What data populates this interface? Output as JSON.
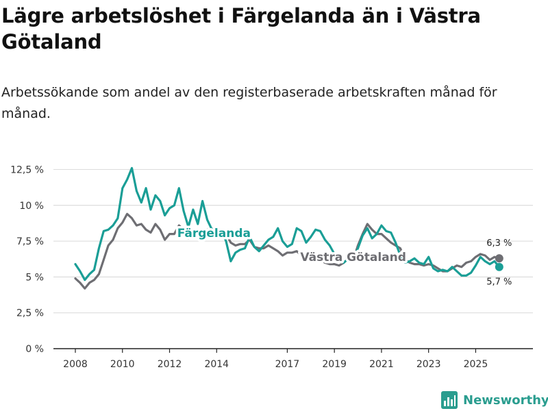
{
  "title": "Lägre arbetslöshet i Färgelanda än i Västra Götaland",
  "subtitle": "Arbetssökande som andel av den registerbaserade arbetskraften månad för månad.",
  "brand": {
    "name": "Newsworthy",
    "logo_icon": "bar-chart-logo-icon"
  },
  "colors": {
    "fargelanda": "#1a9e96",
    "vastra_gotaland": "#6e6e73",
    "grid": "#dddddd",
    "axis": "#222222"
  },
  "chart_data": {
    "type": "line",
    "title": "Lägre arbetslöshet i Färgelanda än i Västra Götaland",
    "xlabel": "",
    "ylabel": "",
    "ylim": [
      0,
      13
    ],
    "xlim": [
      2008,
      2026.5
    ],
    "yticks": [
      0,
      2.5,
      5,
      7.5,
      10,
      12.5
    ],
    "ytick_labels": [
      "0 %",
      "2,5 %",
      "5 %",
      "7,5 %",
      "10 %",
      "12,5 %"
    ],
    "xticks": [
      2008,
      2010,
      2012,
      2014,
      2017,
      2019,
      2021,
      2023,
      2025
    ],
    "xtick_labels": [
      "2008",
      "2010",
      "2012",
      "2014",
      "2017",
      "2019",
      "2021",
      "2023",
      "2025"
    ],
    "grid": true,
    "series": [
      {
        "name": "Västra Götaland",
        "label": "Västra Götaland",
        "end_label": "6,3 %",
        "color": "#6e6e73",
        "x": [
          2008.0,
          2008.2,
          2008.4,
          2008.6,
          2008.8,
          2009.0,
          2009.2,
          2009.4,
          2009.6,
          2009.8,
          2010.0,
          2010.2,
          2010.4,
          2010.6,
          2010.8,
          2011.0,
          2011.2,
          2011.4,
          2011.6,
          2011.8,
          2012.0,
          2012.2,
          2012.4,
          2012.6,
          2012.8,
          2013.0,
          2013.2,
          2013.4,
          2013.6,
          2013.8,
          2014.0,
          2014.2,
          2014.4,
          2014.6,
          2014.8,
          2015.0,
          2015.2,
          2015.4,
          2015.6,
          2015.8,
          2016.0,
          2016.2,
          2016.4,
          2016.6,
          2016.8,
          2017.0,
          2017.2,
          2017.4,
          2017.6,
          2017.8,
          2018.0,
          2018.2,
          2018.4,
          2018.6,
          2018.8,
          2019.0,
          2019.2,
          2019.4,
          2019.6,
          2019.8,
          2020.0,
          2020.2,
          2020.4,
          2020.6,
          2020.8,
          2021.0,
          2021.2,
          2021.4,
          2021.6,
          2021.8,
          2022.0,
          2022.2,
          2022.4,
          2022.6,
          2022.8,
          2023.0,
          2023.2,
          2023.4,
          2023.6,
          2023.8,
          2024.0,
          2024.2,
          2024.4,
          2024.6,
          2024.8,
          2025.0,
          2025.2,
          2025.4,
          2025.6,
          2025.8,
          2026.0
        ],
        "values": [
          4.9,
          4.6,
          4.2,
          4.6,
          4.8,
          5.2,
          6.2,
          7.2,
          7.6,
          8.4,
          8.8,
          9.4,
          9.1,
          8.6,
          8.7,
          8.3,
          8.1,
          8.7,
          8.3,
          7.6,
          8.0,
          8.0,
          8.6,
          8.3,
          7.7,
          8.0,
          8.2,
          8.1,
          8.3,
          8.1,
          8.0,
          8.2,
          8.0,
          7.4,
          7.2,
          7.3,
          7.3,
          7.6,
          7.1,
          7.0,
          7.0,
          7.2,
          7.0,
          6.8,
          6.5,
          6.7,
          6.7,
          6.8,
          6.5,
          6.3,
          6.3,
          6.1,
          6.2,
          6.0,
          5.9,
          5.9,
          5.8,
          6.0,
          6.3,
          6.2,
          7.2,
          8.0,
          8.7,
          8.3,
          8.0,
          8.0,
          7.7,
          7.4,
          7.2,
          7.0,
          6.2,
          6.0,
          5.9,
          5.9,
          5.8,
          5.9,
          5.8,
          5.6,
          5.4,
          5.4,
          5.6,
          5.8,
          5.7,
          6.0,
          6.1,
          6.4,
          6.6,
          6.5,
          6.2,
          6.4,
          6.3
        ]
      },
      {
        "name": "Färgelanda",
        "label": "Färgelanda",
        "end_label": "5,7 %",
        "color": "#1a9e96",
        "x": [
          2008.0,
          2008.2,
          2008.4,
          2008.6,
          2008.8,
          2009.0,
          2009.2,
          2009.4,
          2009.6,
          2009.8,
          2010.0,
          2010.2,
          2010.4,
          2010.6,
          2010.8,
          2011.0,
          2011.2,
          2011.4,
          2011.6,
          2011.8,
          2012.0,
          2012.2,
          2012.4,
          2012.6,
          2012.8,
          2013.0,
          2013.2,
          2013.4,
          2013.6,
          2013.8,
          2014.0,
          2014.2,
          2014.4,
          2014.6,
          2014.8,
          2015.0,
          2015.2,
          2015.4,
          2015.6,
          2015.8,
          2016.0,
          2016.2,
          2016.4,
          2016.6,
          2016.8,
          2017.0,
          2017.2,
          2017.4,
          2017.6,
          2017.8,
          2018.0,
          2018.2,
          2018.4,
          2018.6,
          2018.8,
          2019.0,
          2019.2,
          2019.4,
          2019.6,
          2019.8,
          2020.0,
          2020.2,
          2020.4,
          2020.6,
          2020.8,
          2021.0,
          2021.2,
          2021.4,
          2021.6,
          2021.8,
          2022.0,
          2022.2,
          2022.4,
          2022.6,
          2022.8,
          2023.0,
          2023.2,
          2023.4,
          2023.6,
          2023.8,
          2024.0,
          2024.2,
          2024.4,
          2024.6,
          2024.8,
          2025.0,
          2025.2,
          2025.4,
          2025.6,
          2025.8,
          2026.0
        ],
        "values": [
          5.9,
          5.4,
          4.8,
          5.2,
          5.5,
          7.0,
          8.2,
          8.3,
          8.6,
          9.1,
          11.2,
          11.8,
          12.6,
          11.0,
          10.2,
          11.2,
          9.7,
          10.7,
          10.3,
          9.3,
          9.8,
          10.0,
          11.2,
          9.6,
          8.5,
          9.7,
          8.7,
          10.3,
          9.0,
          8.3,
          8.5,
          8.2,
          7.5,
          6.1,
          6.7,
          6.9,
          7.0,
          7.8,
          7.1,
          6.8,
          7.2,
          7.6,
          7.8,
          8.4,
          7.5,
          7.1,
          7.3,
          8.4,
          8.2,
          7.4,
          7.8,
          8.3,
          8.2,
          7.6,
          7.2,
          6.6,
          6.2,
          6.0,
          6.3,
          6.1,
          7.0,
          7.9,
          8.4,
          7.7,
          8.0,
          8.6,
          8.2,
          8.1,
          7.4,
          6.5,
          6.0,
          6.1,
          6.3,
          6.0,
          5.9,
          6.4,
          5.6,
          5.4,
          5.5,
          5.4,
          5.7,
          5.4,
          5.1,
          5.1,
          5.3,
          5.8,
          6.4,
          6.1,
          5.9,
          6.1,
          5.7
        ]
      }
    ]
  }
}
